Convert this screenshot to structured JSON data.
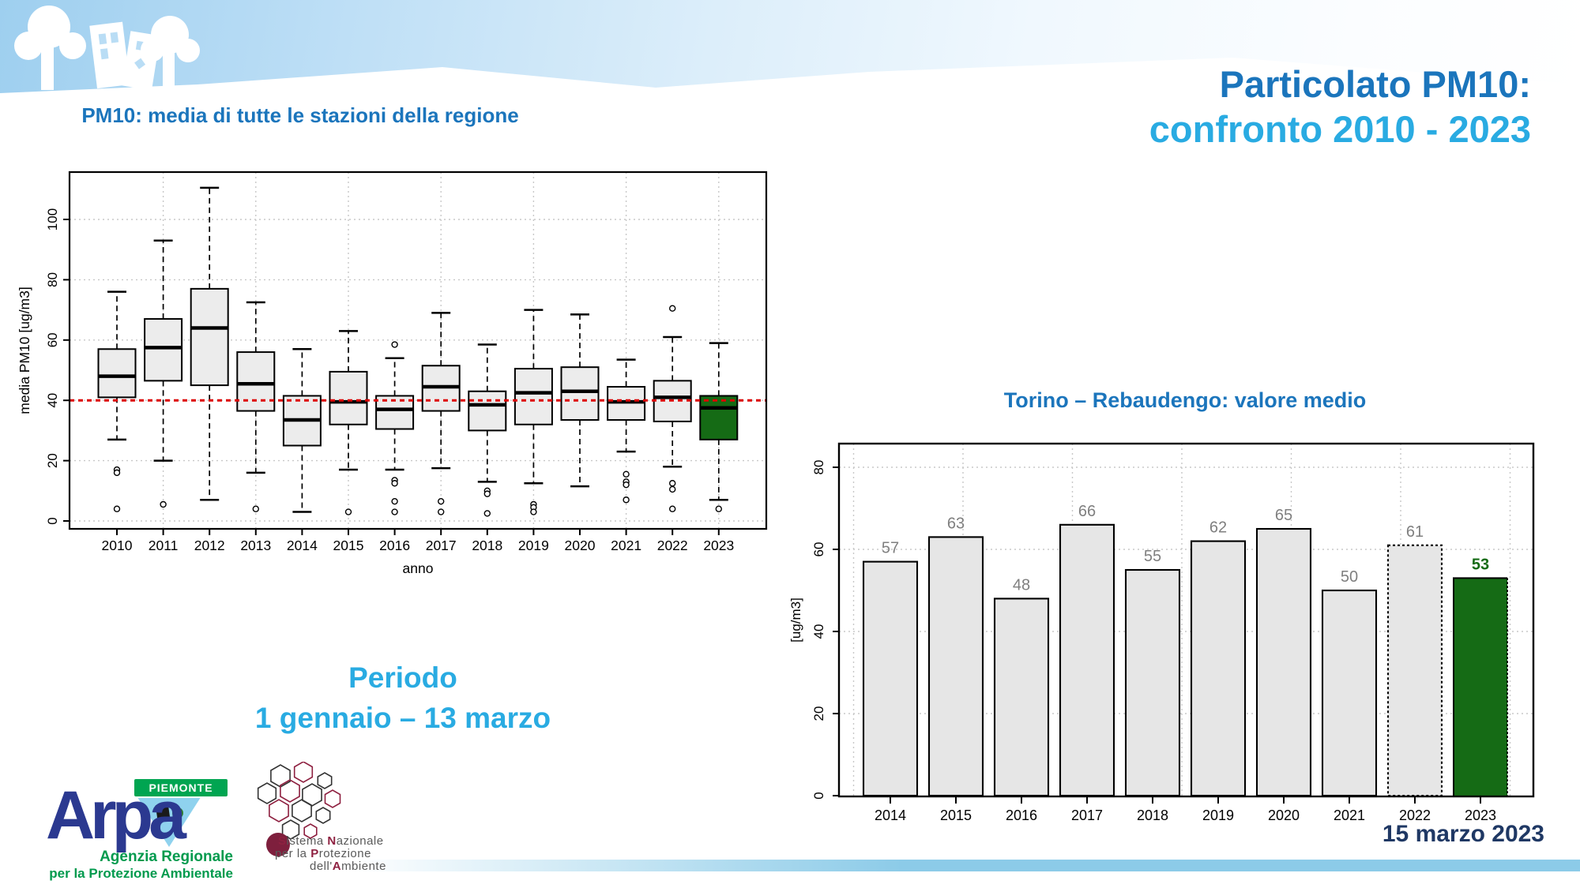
{
  "slide": {
    "title_line1": "Particolato PM10:",
    "title_line2": "confronto 2010 - 2023",
    "period_label": "Periodo",
    "period_range": "1 gennaio – 13 marzo",
    "date_label": "15 marzo 2023"
  },
  "colors": {
    "title_blue": "#1B75BC",
    "accent_blue": "#29ABE2",
    "date_navy": "#1F3864",
    "reference_red": "#DD0000",
    "highlight_green": "#156B15",
    "box_fill": "#ECECEC",
    "bar_fill": "#E6E6E6",
    "value_label_gray": "#7F7F7F",
    "grid_gray": "#C8C8C8",
    "arpa_blue": "#2B3990",
    "arpa_green": "#009A4D",
    "snpa_red": "#8E2040"
  },
  "logos": {
    "arpa": {
      "name": "Arpa",
      "region_banner": "PIEMONTE",
      "line1": "Agenzia Regionale",
      "line2": "per la Protezione Ambientale"
    },
    "snpa": {
      "line1_segments": [
        [
          "S",
          1
        ],
        [
          "istema ",
          0
        ],
        [
          "N",
          1
        ],
        [
          "azionale",
          0
        ]
      ],
      "line2_segments": [
        [
          "per la ",
          0
        ],
        [
          "P",
          1
        ],
        [
          "rotezione",
          0
        ]
      ],
      "line3_segments": [
        [
          "dell'",
          0
        ],
        [
          "A",
          1
        ],
        [
          "mbiente",
          0
        ]
      ]
    }
  },
  "chart_data": [
    {
      "type": "boxplot",
      "title": "PM10: media di tutte le stazioni della regione",
      "xlabel": "anno",
      "ylabel": "media PM10 [ug/m3]",
      "ylim": [
        -2.5,
        115.5
      ],
      "yticks": [
        0,
        20,
        40,
        60,
        80,
        100
      ],
      "grid": "dotted",
      "reference_line": {
        "value": 40,
        "style": "dashed-red"
      },
      "categories": [
        "2010",
        "2011",
        "2012",
        "2013",
        "2014",
        "2015",
        "2016",
        "2017",
        "2018",
        "2019",
        "2020",
        "2021",
        "2022",
        "2023"
      ],
      "boxes": [
        {
          "year": "2010",
          "low": 27,
          "q1": 41,
          "med": 48,
          "q3": 57,
          "high": 76,
          "outliers": [
            17,
            16,
            4
          ]
        },
        {
          "year": "2011",
          "low": 20,
          "q1": 46.5,
          "med": 57.5,
          "q3": 67,
          "high": 93,
          "outliers": [
            5.5
          ]
        },
        {
          "year": "2012",
          "low": 7,
          "q1": 45,
          "med": 64,
          "q3": 77,
          "high": 110.5,
          "outliers": []
        },
        {
          "year": "2013",
          "low": 16,
          "q1": 36.5,
          "med": 45.5,
          "q3": 56,
          "high": 72.5,
          "outliers": [
            4
          ]
        },
        {
          "year": "2014",
          "low": 3,
          "q1": 25,
          "med": 33.5,
          "q3": 41.5,
          "high": 57,
          "outliers": []
        },
        {
          "year": "2015",
          "low": 17,
          "q1": 32,
          "med": 39.5,
          "q3": 49.5,
          "high": 63,
          "outliers": [
            3
          ]
        },
        {
          "year": "2016",
          "low": 17,
          "q1": 30.5,
          "med": 37,
          "q3": 41.5,
          "high": 54,
          "outliers": [
            58.5,
            13.5,
            12.5,
            6.5,
            3
          ]
        },
        {
          "year": "2017",
          "low": 17.5,
          "q1": 36.5,
          "med": 44.5,
          "q3": 51.5,
          "high": 69,
          "outliers": [
            6.5,
            3
          ]
        },
        {
          "year": "2018",
          "low": 13,
          "q1": 30,
          "med": 38.5,
          "q3": 43,
          "high": 58.5,
          "outliers": [
            10,
            9,
            2.5
          ]
        },
        {
          "year": "2019",
          "low": 12.5,
          "q1": 32,
          "med": 42.5,
          "q3": 50.5,
          "high": 70,
          "outliers": [
            5.5,
            4.5,
            3
          ]
        },
        {
          "year": "2020",
          "low": 11.5,
          "q1": 33.5,
          "med": 43,
          "q3": 51,
          "high": 68.5,
          "outliers": []
        },
        {
          "year": "2021",
          "low": 23,
          "q1": 33.5,
          "med": 39.5,
          "q3": 44.5,
          "high": 53.5,
          "outliers": [
            15.5,
            13,
            12,
            7
          ]
        },
        {
          "year": "2022",
          "low": 18,
          "q1": 33,
          "med": 41,
          "q3": 46.5,
          "high": 61,
          "outliers": [
            70.5,
            12.5,
            10.5,
            4
          ]
        },
        {
          "year": "2023",
          "low": 7,
          "q1": 27,
          "med": 37.5,
          "q3": 41.5,
          "high": 59,
          "outliers": [
            4
          ],
          "highlight": true
        }
      ]
    },
    {
      "type": "bar",
      "title": "Torino – Rebaudengo: valore medio",
      "xlabel": "",
      "ylabel": "[ug/m3]",
      "ylim": [
        0,
        86
      ],
      "yticks": [
        0,
        20,
        40,
        60,
        80
      ],
      "grid": "dotted",
      "categories": [
        "2014",
        "2015",
        "2016",
        "2017",
        "2018",
        "2019",
        "2020",
        "2021",
        "2022",
        "2023"
      ],
      "values": [
        57,
        63,
        48,
        66,
        55,
        62,
        65,
        50,
        61,
        53
      ],
      "bar_styles": [
        "solid",
        "solid",
        "solid",
        "solid",
        "solid",
        "solid",
        "solid",
        "solid",
        "dotted",
        "highlight"
      ],
      "highlight_index": 9
    }
  ]
}
